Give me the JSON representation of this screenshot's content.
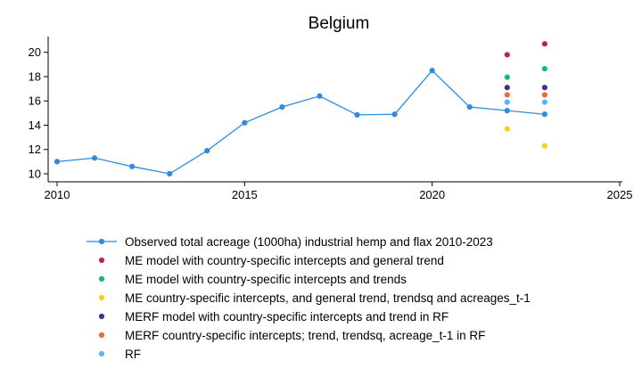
{
  "chart_data": {
    "type": "line",
    "title": "Belgium",
    "xlabel": "",
    "ylabel": "",
    "xlim": [
      2010,
      2025
    ],
    "ylim": [
      9.5,
      21.3
    ],
    "xticks": [
      2010,
      2015,
      2020,
      2025
    ],
    "xtick_labels": [
      "2010",
      "2015",
      "2020",
      "2025"
    ],
    "yticks": [
      10,
      12,
      14,
      16,
      18,
      20
    ],
    "ytick_labels": [
      "10",
      "12",
      "14",
      "16",
      "18",
      "20"
    ],
    "grid": false,
    "legend_position": "bottom",
    "series": [
      {
        "name": "Observed total acreage (1000ha) industrial hemp and flax 2010-2023",
        "kind": "line-marker",
        "color": "#2d8be0",
        "x": [
          2010,
          2011,
          2012,
          2013,
          2014,
          2015,
          2016,
          2017,
          2018,
          2019,
          2020,
          2021,
          2022,
          2023
        ],
        "y": [
          11.0,
          11.3,
          10.6,
          10.0,
          11.9,
          14.2,
          15.5,
          16.4,
          14.85,
          14.9,
          18.5,
          15.5,
          15.2,
          14.9
        ]
      },
      {
        "name": "ME model with country-specific intercepts and general trend",
        "kind": "marker",
        "color": "#c41e62",
        "x": [
          2022,
          2023
        ],
        "y": [
          19.8,
          20.7
        ]
      },
      {
        "name": "ME model with country-specific intercepts and trends",
        "kind": "marker",
        "color": "#12b886",
        "x": [
          2022,
          2023
        ],
        "y": [
          17.95,
          18.65
        ]
      },
      {
        "name": "ME country-specific intercepts, and general trend, trendsq and acreages_t-1",
        "kind": "marker",
        "color": "#f2d21b",
        "x": [
          2022,
          2023
        ],
        "y": [
          13.7,
          12.3
        ]
      },
      {
        "name": "MERF model with country-specific intercepts and trend in RF",
        "kind": "marker",
        "color": "#4b2e8a",
        "x": [
          2022,
          2023
        ],
        "y": [
          17.1,
          17.1
        ]
      },
      {
        "name": "MERF country-specific intercepts; trend, trendsq, acreage_t-1 in RF",
        "kind": "marker",
        "color": "#f06a3a",
        "x": [
          2022,
          2023
        ],
        "y": [
          16.5,
          16.5
        ]
      },
      {
        "name": "RF",
        "kind": "marker",
        "color": "#5fb4f0",
        "x": [
          2022,
          2023
        ],
        "y": [
          15.9,
          15.9
        ]
      }
    ]
  }
}
